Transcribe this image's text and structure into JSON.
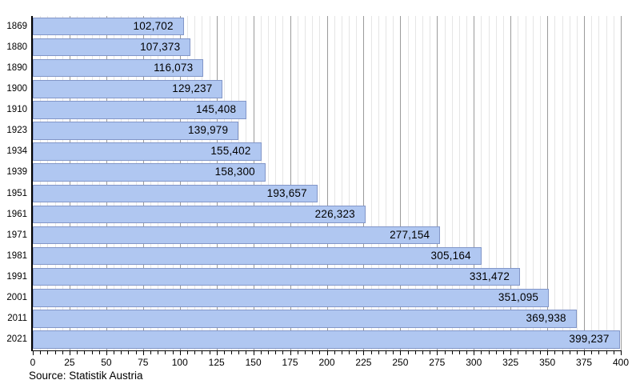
{
  "chart_data": {
    "type": "bar",
    "orientation": "horizontal",
    "title": "",
    "xlabel": "",
    "ylabel": "",
    "categories": [
      "1869",
      "1880",
      "1890",
      "1900",
      "1910",
      "1923",
      "1934",
      "1939",
      "1951",
      "1961",
      "1971",
      "1981",
      "1991",
      "2001",
      "2011",
      "2021"
    ],
    "values": [
      102702,
      107373,
      116073,
      129237,
      145408,
      139979,
      155402,
      158300,
      193657,
      226323,
      277154,
      305164,
      331472,
      351095,
      369938,
      399237
    ],
    "value_labels": [
      "102,702",
      "107,373",
      "116,073",
      "129,237",
      "145,408",
      "139,979",
      "155,402",
      "158,300",
      "193,657",
      "226,323",
      "277,154",
      "305,164",
      "331,472",
      "351,095",
      "369,938",
      "399,237"
    ],
    "x_axis": {
      "min": 0,
      "max": 400,
      "major_tick_step": 25,
      "minor_tick_step": 5,
      "axis_unit_divisor": 1000
    },
    "grid": "on",
    "legend": "none"
  },
  "source_note": "Source: Statistik Austria",
  "colors": {
    "bar_fill": "#b0c7f1",
    "bar_border": "#8296c8",
    "grid_major": "#9b9b9b",
    "grid_minor": "#e5e5e5",
    "axis": "#000000",
    "text": "#000000"
  }
}
